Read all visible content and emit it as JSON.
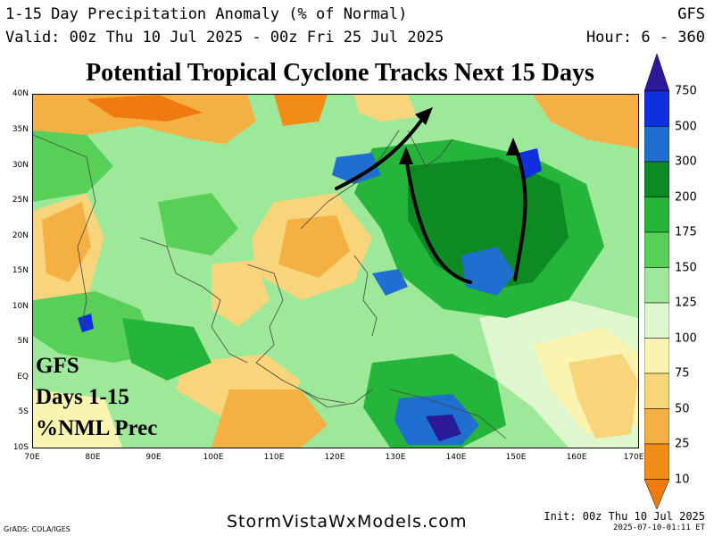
{
  "header": {
    "line1": "1-15 Day Precipitation Anomaly (% of Normal)",
    "line2": "Valid: 00z Thu 10 Jul 2025 - 00z Fri 25 Jul 2025",
    "model": "GFS",
    "hour": "Hour: 6 - 360"
  },
  "title": "Potential Tropical Cyclone Tracks Next 15 Days",
  "map": {
    "lat_labels": [
      "40N",
      "35N",
      "30N",
      "25N",
      "20N",
      "15N",
      "10N",
      "5N",
      "EQ",
      "5S",
      "10S"
    ],
    "lon_labels": [
      "70E",
      "80E",
      "90E",
      "100E",
      "110E",
      "120E",
      "130E",
      "140E",
      "150E",
      "160E",
      "170E"
    ],
    "track_color": "#000000"
  },
  "overlay": {
    "line1": "GFS",
    "line2": "Days 1-15",
    "line3": "%NML Prec"
  },
  "colorbar": {
    "labels": [
      "750",
      "500",
      "300",
      "200",
      "175",
      "150",
      "125",
      "100",
      "75",
      "50",
      "25",
      "10"
    ],
    "colors": [
      "#2a1a9a",
      "#1030e0",
      "#1f6fd0",
      "#0e8a22",
      "#25b53a",
      "#58d058",
      "#9ee89a",
      "#dff7cf",
      "#fbf3b0",
      "#f8d57a",
      "#f5b044",
      "#f28c16",
      "#ef7a10"
    ]
  },
  "footer": {
    "site": "StormVistaWxModels.com",
    "init": "Init: 00z Thu 10 Jul 2025",
    "timestamp": "2025-07-10-01:11 ET",
    "grads": "GrADS: COLA/IGES"
  }
}
